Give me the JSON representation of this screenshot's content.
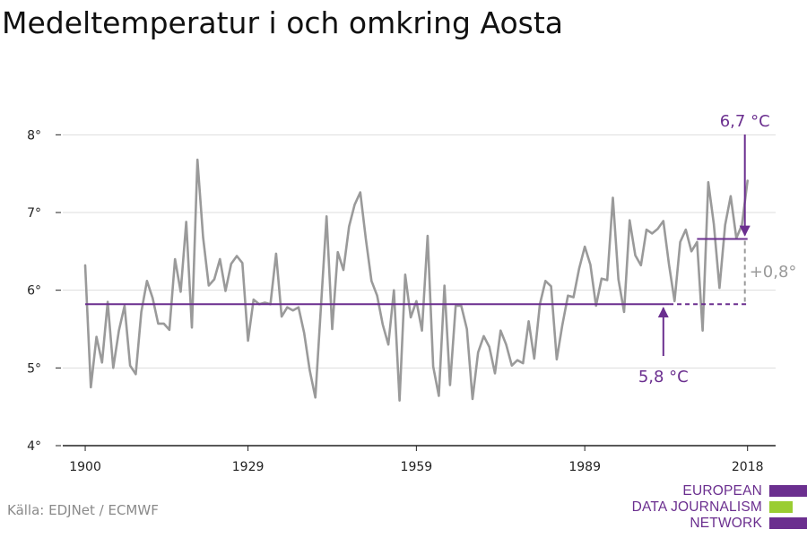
{
  "title": "Medeltemperatur i och omkring Aosta",
  "source": "Källa: EDJNet / ECMWF",
  "logo": {
    "lines": [
      "EUROPEAN",
      "DATA JOURNALISM",
      "NETWORK"
    ],
    "colors": {
      "purple": "#6b2f8f",
      "green": "#9acd32"
    }
  },
  "chart_data": {
    "type": "line",
    "x": [
      1900,
      1901,
      1902,
      1903,
      1904,
      1905,
      1906,
      1907,
      1908,
      1909,
      1910,
      1911,
      1912,
      1913,
      1914,
      1915,
      1916,
      1917,
      1918,
      1919,
      1920,
      1921,
      1922,
      1923,
      1924,
      1925,
      1926,
      1927,
      1928,
      1929,
      1930,
      1931,
      1932,
      1933,
      1934,
      1935,
      1936,
      1937,
      1938,
      1939,
      1940,
      1941,
      1942,
      1943,
      1944,
      1945,
      1946,
      1947,
      1948,
      1949,
      1950,
      1951,
      1952,
      1953,
      1954,
      1955,
      1956,
      1957,
      1958,
      1959,
      1960,
      1961,
      1962,
      1963,
      1964,
      1965,
      1966,
      1967,
      1968,
      1969,
      1970,
      1971,
      1972,
      1973,
      1974,
      1975,
      1976,
      1977,
      1978,
      1979,
      1980,
      1981,
      1982,
      1983,
      1984,
      1985,
      1986,
      1987,
      1988,
      1989,
      1990,
      1991,
      1992,
      1993,
      1994,
      1995,
      1996,
      1997,
      1998,
      1999,
      2000,
      2001,
      2002,
      2003,
      2004,
      2005,
      2006,
      2007,
      2008,
      2009,
      2010,
      2011,
      2012,
      2013,
      2014,
      2015,
      2016,
      2017,
      2018
    ],
    "series": [
      {
        "values": [
          6.32,
          4.75,
          5.4,
          5.07,
          5.85,
          5.0,
          5.48,
          5.8,
          5.03,
          4.92,
          5.72,
          6.12,
          5.9,
          5.57,
          5.57,
          5.49,
          6.4,
          5.98,
          6.88,
          5.52,
          7.68,
          6.68,
          6.06,
          6.14,
          6.4,
          5.99,
          6.34,
          6.44,
          6.35,
          5.35,
          5.88,
          5.82,
          5.84,
          5.82,
          6.47,
          5.66,
          5.78,
          5.74,
          5.78,
          5.45,
          4.97,
          4.62,
          5.8,
          6.95,
          5.5,
          6.49,
          6.26,
          6.82,
          7.1,
          7.26,
          6.66,
          6.12,
          5.93,
          5.56,
          5.3,
          6.0,
          4.58,
          6.2,
          5.65,
          5.86,
          5.48,
          6.7,
          5.02,
          4.64,
          6.06,
          4.78,
          5.8,
          5.8,
          5.5,
          4.6,
          5.2,
          5.41,
          5.27,
          4.93,
          5.48,
          5.3,
          5.03,
          5.1,
          5.06,
          5.6,
          5.12,
          5.82,
          6.12,
          6.05,
          5.11,
          5.55,
          5.93,
          5.91,
          6.28,
          6.56,
          6.33,
          5.8,
          6.15,
          6.13,
          7.19,
          6.14,
          5.72,
          6.9,
          6.45,
          6.32,
          6.78,
          6.73,
          6.79,
          6.89,
          6.33,
          5.86,
          6.62,
          6.78,
          6.5,
          6.62,
          5.48,
          7.39,
          6.85,
          6.03,
          6.84,
          7.21,
          6.67,
          6.84,
          7.41
        ]
      }
    ],
    "ylim": [
      4,
      8.5
    ],
    "xlim": [
      1896,
      2023
    ],
    "yticks": [
      4,
      5,
      6,
      7,
      8
    ],
    "ytick_labels": [
      "4°",
      "5°",
      "6°",
      "7°",
      "8°"
    ],
    "xticks": [
      1900,
      1929,
      1959,
      1989,
      2018
    ],
    "xtick_labels": [
      "1900",
      "1929",
      "1959",
      "1989",
      "2018"
    ],
    "grid": true,
    "averages": [
      {
        "label": "5,8 °C",
        "value": 5.82,
        "from": 1900,
        "to": 2004,
        "dashed_to": 2018
      },
      {
        "label": "6,7 °C",
        "value": 6.66,
        "from": 2009,
        "to": 2018
      }
    ],
    "difference_label": "+0,8°",
    "colors": {
      "line": "#9a9a9a",
      "average": "#6b2f8f",
      "difference": "#9a9a9a",
      "grid": "#dddddd",
      "axis": "#222222",
      "tick_text": "#222222"
    }
  }
}
